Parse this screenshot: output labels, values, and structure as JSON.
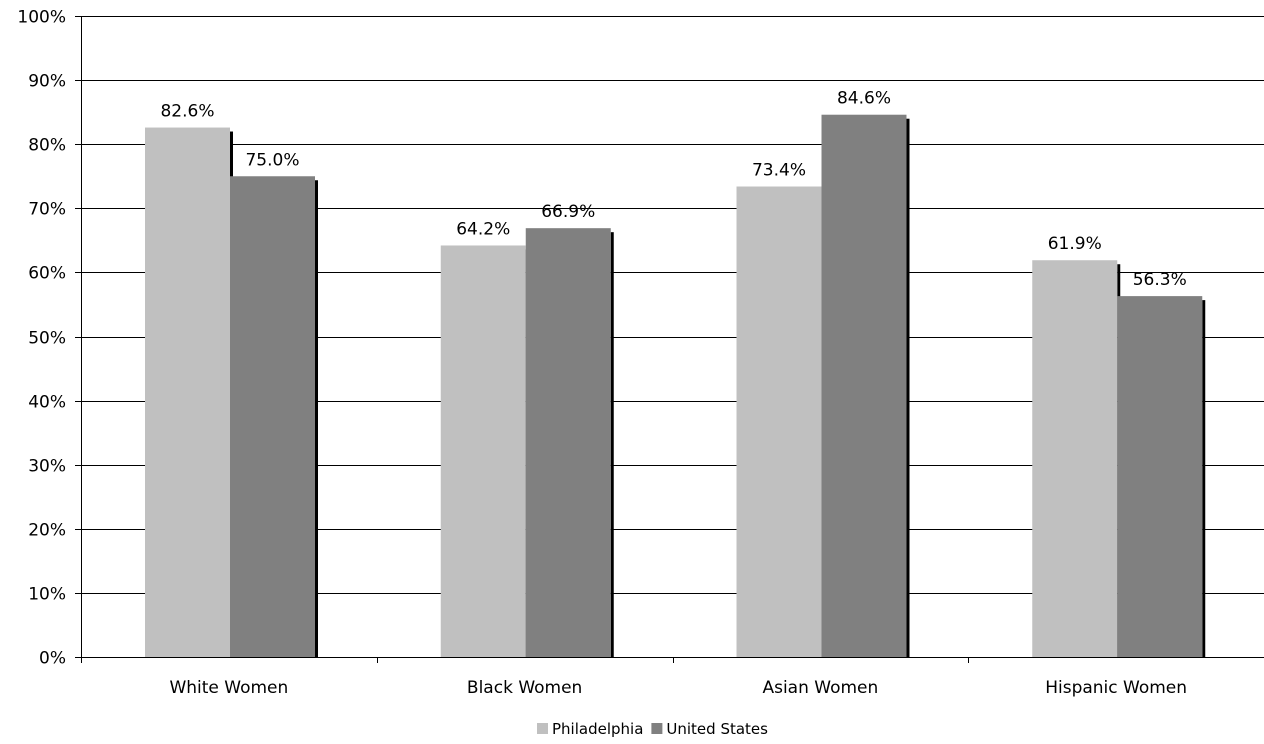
{
  "chart_data": {
    "type": "bar",
    "categories": [
      "White Women",
      "Black Women",
      "Asian Women",
      "Hispanic Women"
    ],
    "series": [
      {
        "name": "Philadelphia",
        "values": [
          82.6,
          64.2,
          73.4,
          61.9
        ],
        "labels": [
          "82.6%",
          "64.2%",
          "73.4%",
          "61.9%"
        ],
        "color": "#c0c0c0"
      },
      {
        "name": "United States",
        "values": [
          75.0,
          66.9,
          84.6,
          56.3
        ],
        "labels": [
          "75.0%",
          "66.9%",
          "84.6%",
          "56.3%"
        ],
        "color": "#808080"
      }
    ],
    "ylim": [
      0,
      100
    ],
    "y_ticks": [
      0,
      10,
      20,
      30,
      40,
      50,
      60,
      70,
      80,
      90,
      100
    ],
    "y_tick_labels": [
      "0%",
      "10%",
      "20%",
      "30%",
      "40%",
      "50%",
      "60%",
      "70%",
      "80%",
      "90%",
      "100%"
    ],
    "grid": true,
    "legend_position": "bottom"
  }
}
